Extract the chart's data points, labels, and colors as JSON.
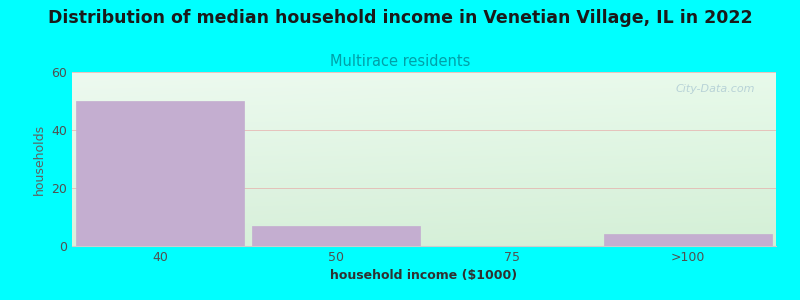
{
  "title": "Distribution of median household income in Venetian Village, IL in 2022",
  "subtitle": "Multirace residents",
  "xlabel": "household income ($1000)",
  "ylabel": "households",
  "categories": [
    "40",
    "50",
    "75",
    ">100"
  ],
  "values": [
    50,
    7,
    0,
    4
  ],
  "bar_color": "#c4aed0",
  "bar_edge_color": "#c4aed0",
  "background_color": "#00ffff",
  "title_color": "#1a1a1a",
  "subtitle_color": "#00a0a8",
  "ylabel_color": "#606060",
  "xlabel_color": "#303030",
  "tick_color": "#505050",
  "axis_color": "#e0e0e0",
  "grid_color": "#e8a0a0",
  "ylim": [
    0,
    60
  ],
  "yticks": [
    0,
    20,
    40,
    60
  ],
  "title_fontsize": 12.5,
  "subtitle_fontsize": 10.5,
  "axis_label_fontsize": 9,
  "tick_fontsize": 9,
  "watermark": "City-Data.com",
  "watermark_color": "#b0ccd4",
  "figsize": [
    8.0,
    3.0
  ],
  "dpi": 100
}
